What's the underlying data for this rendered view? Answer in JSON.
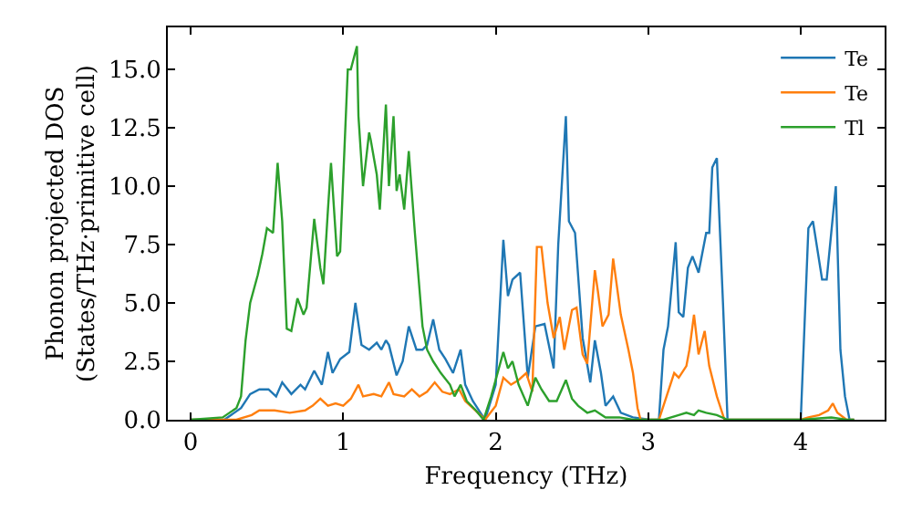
{
  "chart_data": {
    "type": "line",
    "xlabel": "Frequency (THz)",
    "ylabel": "Phonon projected DOS\n(States/THz·primitive cell)",
    "xlim": [
      -0.15,
      4.55
    ],
    "xticks": [
      0,
      1,
      2,
      3,
      4
    ],
    "ylim": [
      0,
      16.8
    ],
    "yticks": [
      {
        "value": 0,
        "label": "0.0"
      },
      2.5,
      {
        "value": 5,
        "label": "5.0"
      },
      7.5,
      {
        "value": 10,
        "label": "10.0"
      },
      12.5,
      {
        "value": 15,
        "label": "15.0"
      }
    ],
    "legend": "top right",
    "marker": "none",
    "line_style": "solid",
    "series": [
      {
        "name": "Te",
        "color": "#1f77b4",
        "x": [
          0,
          0.22,
          0.33,
          0.39,
          0.45,
          0.51,
          0.56,
          0.6,
          0.66,
          0.72,
          0.75,
          0.81,
          0.86,
          0.9,
          0.93,
          0.98,
          1.04,
          1.08,
          1.12,
          1.17,
          1.22,
          1.25,
          1.28,
          1.3,
          1.35,
          1.39,
          1.43,
          1.48,
          1.52,
          1.55,
          1.59,
          1.63,
          1.67,
          1.72,
          1.77,
          1.8,
          1.85,
          1.9,
          1.93,
          2.0,
          2.05,
          2.08,
          2.11,
          2.16,
          2.21,
          2.26,
          2.32,
          2.38,
          2.41,
          2.46,
          2.48,
          2.52,
          2.57,
          2.62,
          2.65,
          2.69,
          2.72,
          2.77,
          2.82,
          2.9,
          3.01,
          3.07,
          3.1,
          3.13,
          3.18,
          3.2,
          3.23,
          3.26,
          3.29,
          3.33,
          3.38,
          3.4,
          3.42,
          3.45,
          3.49,
          3.52,
          4.0,
          4.05,
          4.08,
          4.14,
          4.17,
          4.2,
          4.23,
          4.26,
          4.29,
          4.32,
          4.35
        ],
        "values": [
          0,
          0,
          0.5,
          1.1,
          1.3,
          1.3,
          1.0,
          1.6,
          1.1,
          1.5,
          1.3,
          2.1,
          1.5,
          2.9,
          2.0,
          2.6,
          2.9,
          5.0,
          3.2,
          3.0,
          3.3,
          3.0,
          3.4,
          3.2,
          1.9,
          2.5,
          4.0,
          3.0,
          3.0,
          3.2,
          4.3,
          3.0,
          2.6,
          2.0,
          3.0,
          1.5,
          0.8,
          0.3,
          0,
          1.5,
          7.7,
          5.3,
          6.0,
          6.3,
          1.8,
          4.0,
          4.1,
          2.2,
          7.5,
          13.0,
          8.5,
          8.0,
          3.5,
          1.6,
          3.4,
          2.0,
          0.6,
          1.0,
          0.3,
          0.1,
          0,
          0,
          3.0,
          4.0,
          7.6,
          4.6,
          4.4,
          6.5,
          7.0,
          6.3,
          8.0,
          8.0,
          10.8,
          11.2,
          5.0,
          0,
          0,
          8.2,
          8.5,
          6.0,
          6.0,
          8.0,
          10.0,
          3.0,
          1.0,
          0,
          0
        ]
      },
      {
        "name": "Te",
        "color": "#ff7f0e",
        "x": [
          0,
          0.3,
          0.4,
          0.45,
          0.55,
          0.65,
          0.75,
          0.8,
          0.85,
          0.9,
          0.95,
          1.0,
          1.05,
          1.1,
          1.13,
          1.2,
          1.25,
          1.3,
          1.33,
          1.4,
          1.45,
          1.5,
          1.55,
          1.6,
          1.65,
          1.7,
          1.76,
          1.8,
          1.85,
          1.9,
          1.93,
          2.0,
          2.05,
          2.1,
          2.15,
          2.2,
          2.24,
          2.27,
          2.3,
          2.34,
          2.38,
          2.42,
          2.45,
          2.5,
          2.53,
          2.57,
          2.6,
          2.65,
          2.67,
          2.7,
          2.74,
          2.77,
          2.82,
          2.87,
          2.9,
          2.93,
          2.95,
          3.07,
          3.12,
          3.17,
          3.2,
          3.25,
          3.27,
          3.3,
          3.33,
          3.37,
          3.4,
          3.45,
          3.5,
          4.0,
          4.05,
          4.12,
          4.18,
          4.21,
          4.24,
          4.3,
          4.35
        ],
        "values": [
          0,
          0,
          0.2,
          0.4,
          0.4,
          0.3,
          0.4,
          0.6,
          0.9,
          0.6,
          0.7,
          0.6,
          0.9,
          1.5,
          1.0,
          1.1,
          1.0,
          1.6,
          1.1,
          1.0,
          1.3,
          1.0,
          1.2,
          1.6,
          1.2,
          1.1,
          1.3,
          0.8,
          0.5,
          0.2,
          0,
          0.6,
          1.8,
          1.5,
          1.7,
          2.0,
          1.2,
          7.4,
          7.4,
          5.0,
          3.5,
          4.4,
          3.0,
          4.7,
          4.8,
          2.8,
          2.4,
          6.4,
          5.5,
          4.0,
          4.5,
          6.9,
          4.5,
          3.0,
          2.0,
          0.5,
          0,
          0,
          1.0,
          2.0,
          1.8,
          2.3,
          3.0,
          4.5,
          2.8,
          3.8,
          2.3,
          1.0,
          0,
          0,
          0.1,
          0.2,
          0.4,
          0.7,
          0.3,
          0,
          0
        ]
      },
      {
        "name": "Tl",
        "color": "#2ca02c",
        "x": [
          0,
          0.21,
          0.3,
          0.33,
          0.36,
          0.39,
          0.44,
          0.47,
          0.5,
          0.54,
          0.57,
          0.6,
          0.63,
          0.66,
          0.7,
          0.74,
          0.76,
          0.81,
          0.85,
          0.87,
          0.9,
          0.92,
          0.96,
          0.98,
          1.03,
          1.05,
          1.09,
          1.1,
          1.13,
          1.17,
          1.18,
          1.22,
          1.24,
          1.28,
          1.3,
          1.33,
          1.35,
          1.37,
          1.4,
          1.43,
          1.47,
          1.52,
          1.55,
          1.59,
          1.64,
          1.7,
          1.73,
          1.77,
          1.81,
          1.87,
          1.92,
          1.97,
          2.05,
          2.08,
          2.11,
          2.15,
          2.21,
          2.26,
          2.3,
          2.35,
          2.4,
          2.46,
          2.5,
          2.54,
          2.6,
          2.65,
          2.72,
          2.81,
          2.9,
          3.1,
          3.2,
          3.25,
          3.3,
          3.33,
          3.38,
          3.45,
          3.52,
          4.0,
          4.2,
          4.3,
          4.35
        ],
        "values": [
          0,
          0.1,
          0.5,
          1.0,
          3.4,
          5.0,
          6.2,
          7.1,
          8.2,
          8.0,
          11.0,
          8.5,
          3.9,
          3.8,
          5.2,
          4.5,
          4.8,
          8.6,
          6.5,
          5.8,
          9.0,
          11.0,
          7.0,
          7.2,
          15.0,
          15.0,
          16.0,
          13.0,
          10.0,
          12.3,
          12.0,
          10.5,
          9.0,
          13.5,
          10.0,
          13.0,
          9.8,
          10.5,
          9.0,
          11.5,
          8.0,
          4.0,
          3.0,
          2.5,
          2.0,
          1.5,
          1.0,
          1.5,
          0.8,
          0.4,
          0,
          1.0,
          2.9,
          2.2,
          2.5,
          1.5,
          0.6,
          1.8,
          1.3,
          0.8,
          0.8,
          1.7,
          0.9,
          0.6,
          0.3,
          0.4,
          0.1,
          0.1,
          0,
          0,
          0.2,
          0.3,
          0.2,
          0.4,
          0.3,
          0.2,
          0,
          0,
          0.1,
          0,
          0
        ]
      }
    ]
  }
}
